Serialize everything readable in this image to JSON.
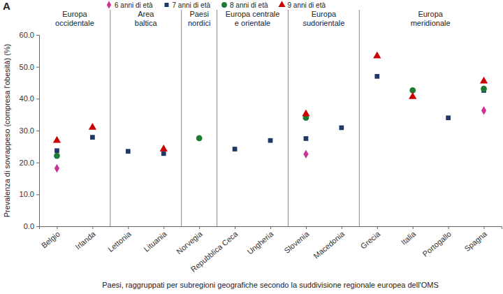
{
  "chart_data": {
    "type": "scatter",
    "annotations": [
      "A"
    ],
    "x_label": "Paesi, raggruppati per subregioni geografiche secondo la suddivisione regionale europea dell'OMS",
    "y_label": "Prevalenza di sovrappeso (compresa l'obesità) (%)",
    "categories": [
      "Belgio",
      "Irlanda",
      "Lettonia",
      "Lituania",
      "Norvegia",
      "Repubblica Ceca",
      "Ungheria",
      "Slovenia",
      "Macedonia",
      "Grecia",
      "Italia",
      "Portogallo",
      "Spagna"
    ],
    "groups": [
      {
        "label": [
          "Europa",
          "occidentale"
        ],
        "categories": [
          "Belgio",
          "Irlanda"
        ]
      },
      {
        "label": [
          "Area",
          "baltica"
        ],
        "categories": [
          "Lettonia",
          "Lituania"
        ]
      },
      {
        "label": [
          "Paesi",
          "nordici"
        ],
        "categories": [
          "Norvegia"
        ]
      },
      {
        "label": [
          "Europa centrale",
          "e orientale"
        ],
        "categories": [
          "Repubblica Ceca",
          "Ungheria"
        ]
      },
      {
        "label": [
          "Europa",
          "sudorientale"
        ],
        "categories": [
          "Slovenia",
          "Macedonia"
        ]
      },
      {
        "label": [
          "Europa",
          "meridionale"
        ],
        "categories": [
          "Grecia",
          "Italia",
          "Portogallo",
          "Spagna"
        ]
      }
    ],
    "series": [
      {
        "name": "6 anni di età",
        "color": "#cc3399",
        "marker": "diamond",
        "values": [
          18.2,
          null,
          null,
          null,
          null,
          null,
          null,
          22.6,
          null,
          null,
          null,
          null,
          36.3
        ]
      },
      {
        "name": "7 anni di età",
        "color": "#1f3864",
        "marker": "square",
        "values": [
          23.7,
          27.9,
          23.5,
          22.8,
          null,
          24.2,
          26.9,
          27.5,
          30.9,
          47.0,
          null,
          34.0,
          42.6
        ]
      },
      {
        "name": "8 anni di età",
        "color": "#1e7b34",
        "marker": "circle",
        "values": [
          22.1,
          null,
          null,
          null,
          27.6,
          null,
          null,
          34.0,
          null,
          null,
          42.6,
          null,
          43.1
        ]
      },
      {
        "name": "9 anni di età",
        "color": "#cc0000",
        "marker": "triangle",
        "values": [
          26.9,
          31.0,
          null,
          24.2,
          null,
          null,
          null,
          35.2,
          null,
          53.4,
          40.6,
          null,
          45.5
        ]
      }
    ],
    "ylim": [
      0,
      60
    ],
    "yticks": [
      {
        "value": 0,
        "label": "0.0"
      },
      {
        "value": 10,
        "label": "10.0"
      },
      {
        "value": 20,
        "label": "20.0"
      },
      {
        "value": 30,
        "label": "30.0"
      },
      {
        "value": 40,
        "label": "40.0"
      },
      {
        "value": 50,
        "label": "50.0"
      },
      {
        "value": 60,
        "label": "60.0"
      }
    ],
    "grid": false,
    "legend": "top"
  }
}
